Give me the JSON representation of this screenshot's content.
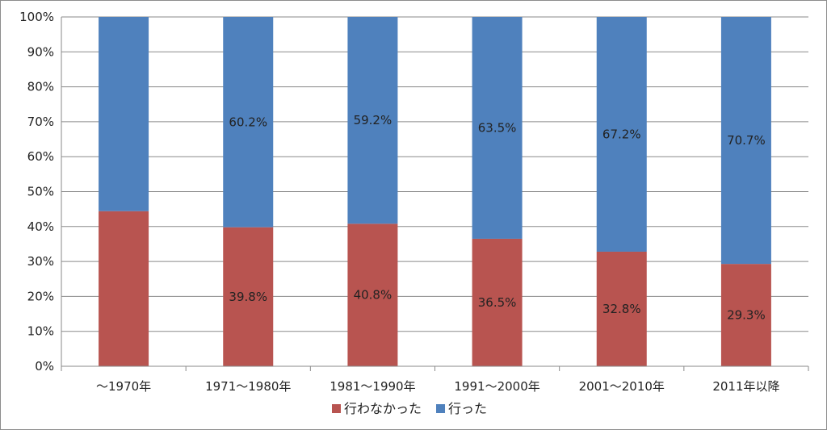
{
  "chart_data": {
    "type": "bar",
    "stacked": true,
    "percent": true,
    "categories": [
      "～1970年",
      "1971～1980年",
      "1981～1990年",
      "1991～2000年",
      "2001～2010年",
      "2011年以降"
    ],
    "series": [
      {
        "name": "行わなかった",
        "color": "#b85450",
        "values": [
          44.4,
          39.8,
          40.8,
          36.5,
          32.8,
          29.3
        ],
        "labels": [
          "",
          "39.8%",
          "40.8%",
          "36.5%",
          "32.8%",
          "29.3%"
        ]
      },
      {
        "name": "行った",
        "color": "#4f81bd",
        "values": [
          55.6,
          60.2,
          59.2,
          63.5,
          67.2,
          70.7
        ],
        "labels": [
          "",
          "60.2%",
          "59.2%",
          "63.5%",
          "67.2%",
          "70.7%"
        ]
      }
    ],
    "y_ticks": [
      "0%",
      "10%",
      "20%",
      "30%",
      "40%",
      "50%",
      "60%",
      "70%",
      "80%",
      "90%",
      "100%"
    ],
    "ylim": [
      0,
      100
    ],
    "grid": true,
    "legend_position": "bottom"
  }
}
